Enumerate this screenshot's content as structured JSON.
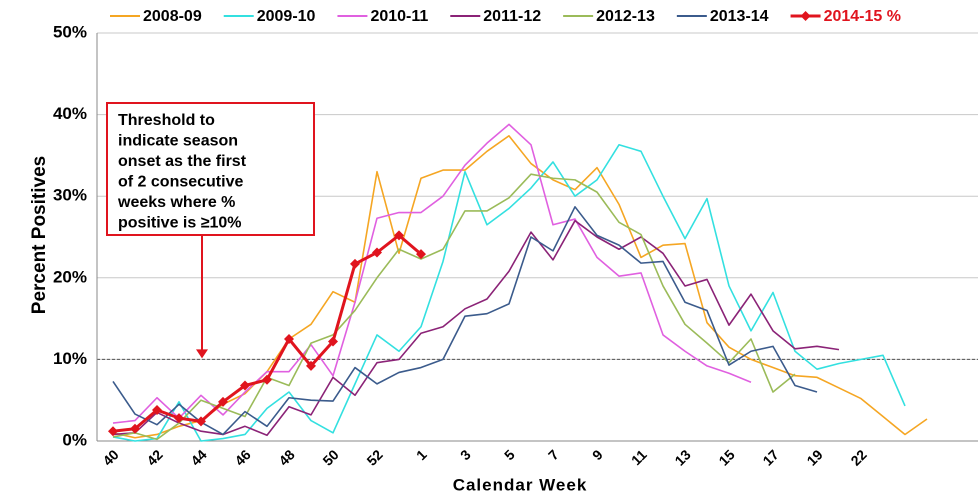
{
  "chart_data": {
    "type": "line",
    "x_label": "Calendar Week",
    "y_label": "Percent Positives",
    "categories": [
      "40",
      null,
      "42",
      null,
      "44",
      null,
      "46",
      null,
      "48",
      null,
      "50",
      null,
      "52",
      null,
      "1",
      null,
      "3",
      null,
      "5",
      null,
      "7",
      null,
      "9",
      null,
      "11",
      null,
      "13",
      null,
      "15",
      null,
      "17",
      null,
      "19",
      null,
      "22",
      null,
      null,
      null,
      null,
      null
    ],
    "ylim": [
      0,
      50
    ],
    "yticks": [
      {
        "value": 0,
        "label": "0%"
      },
      {
        "value": 10,
        "label": "10%"
      },
      {
        "value": 20,
        "label": "20%"
      },
      {
        "value": 30,
        "label": "30%"
      },
      {
        "value": 40,
        "label": "40%"
      },
      {
        "value": 50,
        "label": "50%"
      }
    ],
    "grid": true,
    "threshold": 10,
    "annotation": [
      "Threshold to",
      "indicate season",
      "onset  as the first",
      "of 2 consecutive",
      "weeks where %",
      "positive is ≥10%"
    ],
    "legend": "top",
    "series": [
      {
        "name": "2008-09",
        "color": "#f5a623",
        "values": [
          1.0,
          0.4,
          0.8,
          1.8,
          2.5,
          4.5,
          5.8,
          8.5,
          12.5,
          14.3,
          18.3,
          17.0,
          33.0,
          23.0,
          32.2,
          33.2,
          33.2,
          35.5,
          37.4,
          34.0,
          32.0,
          30.8,
          33.5,
          29.0,
          22.5,
          24.0,
          24.2,
          14.5,
          11.5,
          10.0,
          9.0,
          8.0,
          7.8,
          6.5,
          5.2,
          3.0,
          0.8,
          2.7,
          null,
          null
        ]
      },
      {
        "name": "2009-10",
        "color": "#33e0e0",
        "values": [
          0.5,
          0.0,
          0.3,
          4.8,
          0.0,
          0.3,
          0.8,
          4.0,
          6.0,
          2.5,
          1.0,
          7.0,
          13.0,
          11.0,
          14.0,
          22.0,
          33.0,
          26.5,
          28.5,
          31.0,
          34.2,
          30.0,
          32.0,
          36.3,
          35.5,
          30.0,
          24.8,
          29.7,
          19.0,
          13.5,
          18.2,
          11.0,
          8.8,
          9.5,
          10.0,
          10.5,
          4.3,
          null,
          null,
          null
        ]
      },
      {
        "name": "2010-11",
        "color": "#e060e0",
        "values": [
          2.2,
          2.5,
          5.3,
          2.8,
          5.6,
          3.2,
          6.0,
          8.5,
          8.5,
          11.8,
          8.0,
          17.0,
          27.3,
          28.0,
          28.0,
          30.0,
          33.8,
          36.5,
          38.8,
          36.3,
          26.5,
          27.2,
          22.5,
          20.2,
          20.6,
          13.0,
          11.0,
          9.2,
          8.3,
          7.2,
          null,
          null,
          null,
          null,
          null,
          null,
          null,
          null,
          null,
          null
        ]
      },
      {
        "name": "2011-12",
        "color": "#8b2377",
        "values": [
          0.8,
          1.0,
          3.5,
          2.2,
          1.2,
          0.8,
          1.8,
          0.7,
          4.2,
          3.2,
          7.8,
          5.6,
          9.6,
          10.0,
          13.2,
          14.0,
          16.2,
          17.4,
          20.8,
          25.6,
          22.2,
          27.0,
          25.0,
          23.5,
          25.0,
          23.0,
          19.0,
          19.8,
          14.2,
          18.0,
          13.5,
          11.3,
          11.6,
          11.2,
          null,
          null,
          null,
          null,
          null,
          null
        ]
      },
      {
        "name": "2012-13",
        "color": "#9bbb59",
        "values": [
          0.5,
          1.0,
          0.2,
          2.2,
          5.0,
          4.0,
          3.0,
          7.8,
          6.8,
          12.0,
          13.0,
          16.0,
          20.0,
          23.5,
          22.3,
          23.5,
          28.2,
          28.2,
          29.8,
          32.7,
          32.2,
          32.0,
          30.5,
          26.8,
          25.3,
          19.0,
          14.3,
          12.0,
          9.6,
          12.5,
          6.0,
          8.2,
          null,
          null,
          null,
          null,
          null,
          null,
          null,
          null
        ]
      },
      {
        "name": "2013-14",
        "color": "#3b5b8c",
        "values": [
          7.3,
          3.3,
          2.0,
          4.5,
          2.3,
          0.8,
          3.6,
          1.8,
          5.3,
          5.0,
          4.9,
          9.0,
          7.0,
          8.4,
          9.0,
          10.0,
          15.3,
          15.6,
          16.8,
          25.0,
          23.3,
          28.7,
          25.2,
          24.0,
          21.8,
          22.0,
          17.0,
          16.0,
          9.3,
          11.0,
          11.6,
          6.8,
          6.0,
          null,
          null,
          null,
          null,
          null,
          null,
          null
        ]
      },
      {
        "name": "2014-15 %",
        "color": "#e0141e",
        "marker": "diamond",
        "values": [
          1.2,
          1.5,
          3.8,
          2.8,
          2.4,
          4.8,
          6.8,
          7.5,
          12.5,
          9.2,
          12.2,
          21.7,
          23.1,
          25.2,
          22.9,
          null,
          null,
          null,
          null,
          null,
          null,
          null,
          null,
          null,
          null,
          null,
          null,
          null,
          null,
          null,
          null,
          null,
          null,
          null,
          null,
          null,
          null,
          null,
          null,
          null
        ]
      }
    ]
  }
}
